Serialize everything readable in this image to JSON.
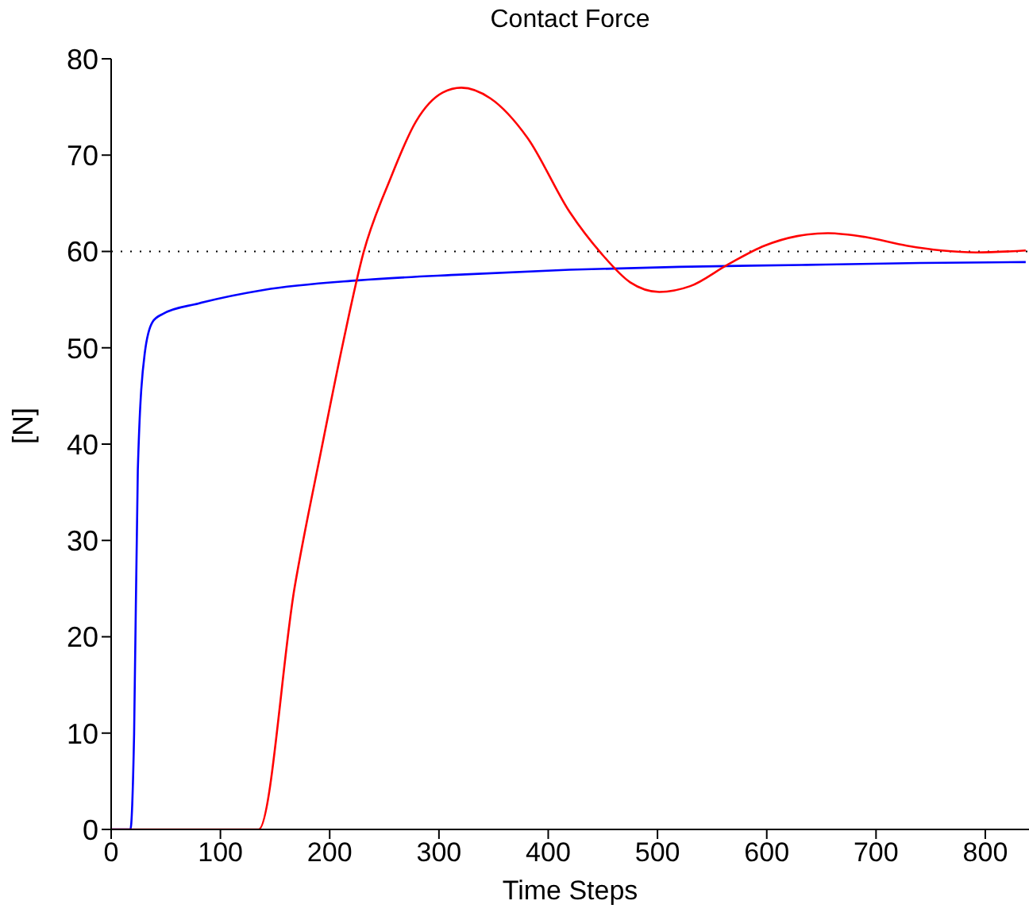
{
  "chart_data": {
    "type": "line",
    "title": "Contact Force",
    "xlabel": "Time Steps",
    "ylabel": "[N]",
    "xlim": [
      0,
      840
    ],
    "xticks": [
      0,
      100,
      200,
      300,
      400,
      500,
      600,
      700,
      800
    ],
    "ylim": [
      0,
      80
    ],
    "yticks": [
      0,
      10,
      20,
      30,
      40,
      50,
      60,
      70,
      80
    ],
    "grid": false,
    "legend": false,
    "marker": "none",
    "line_style": "solid",
    "series": [
      {
        "color": "#0000ff",
        "x": [
          0,
          17.6,
          21,
          24.4,
          30.7,
          38,
          47,
          80,
          139.5,
          226,
          320,
          419.6,
          520,
          632,
          740,
          837
        ],
        "values": [
          0,
          0,
          9.9,
          37.3,
          49.4,
          52.7,
          53.5,
          54.6,
          56.0,
          57.0,
          57.6,
          58.1,
          58.4,
          58.6,
          58.8,
          58.9
        ]
      },
      {
        "color": "#ff0000",
        "x": [
          0,
          135,
          168,
          192.5,
          212,
          231,
          255,
          279,
          303.6,
          320.5,
          347,
          381,
          419.6,
          448.5,
          475,
          501.7,
          530,
          564.5,
          598,
          628,
          656,
          690,
          728,
          760,
          791.7,
          837
        ],
        "values": [
          0,
          0,
          25.2,
          39.5,
          50.4,
          59.9,
          67.4,
          73.5,
          76.5,
          77.0,
          75.9,
          71.8,
          64.1,
          59.8,
          56.8,
          55.8,
          56.4,
          58.65,
          60.6,
          61.6,
          61.9,
          61.5,
          60.6,
          60.1,
          59.9,
          60.1
        ]
      }
    ],
    "ref_lines": [
      {
        "axis": "y",
        "value": 60,
        "color": "#000000",
        "line_style": "dotted"
      }
    ]
  }
}
